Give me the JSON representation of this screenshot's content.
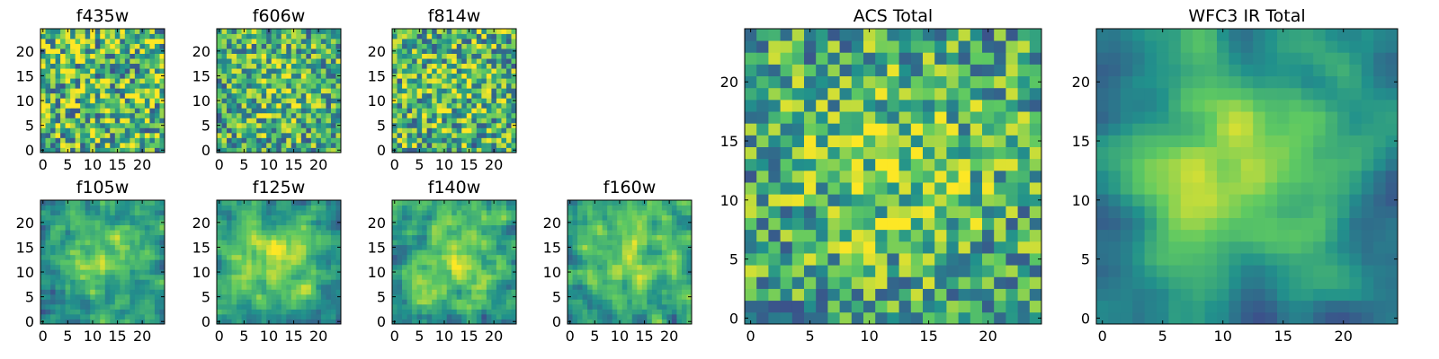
{
  "figure": {
    "colormap": [
      "#440154",
      "#3b528b",
      "#21918c",
      "#5ec962",
      "#fde725"
    ],
    "frame_color": "#000000"
  },
  "chart_data": [
    {
      "type": "heatmap",
      "title": "f435w",
      "grid_size": 25,
      "seed": 11,
      "smooth": 0,
      "center_boost": 0.0,
      "clim": [
        0,
        1
      ],
      "x_ticks": [
        0,
        5,
        10,
        15,
        20
      ],
      "y_ticks": [
        0,
        5,
        10,
        15,
        20
      ],
      "xlim": [
        -0.5,
        24.5
      ],
      "ylim": [
        -0.5,
        24.5
      ]
    },
    {
      "type": "heatmap",
      "title": "f606w",
      "grid_size": 25,
      "seed": 23,
      "smooth": 0,
      "center_boost": 0.15,
      "clim": [
        0,
        1
      ],
      "x_ticks": [
        0,
        5,
        10,
        15,
        20
      ],
      "y_ticks": [
        0,
        5,
        10,
        15,
        20
      ],
      "xlim": [
        -0.5,
        24.5
      ],
      "ylim": [
        -0.5,
        24.5
      ]
    },
    {
      "type": "heatmap",
      "title": "f814w",
      "grid_size": 25,
      "seed": 37,
      "smooth": 0,
      "center_boost": 0.1,
      "clim": [
        0,
        1
      ],
      "x_ticks": [
        0,
        5,
        10,
        15,
        20
      ],
      "y_ticks": [
        0,
        5,
        10,
        15,
        20
      ],
      "xlim": [
        -0.5,
        24.5
      ],
      "ylim": [
        -0.5,
        24.5
      ]
    },
    {
      "type": "heatmap",
      "title": "f105w",
      "grid_size": 25,
      "seed": 41,
      "smooth": 1,
      "center_boost": 0.35,
      "clim": [
        0,
        1
      ],
      "x_ticks": [
        0,
        5,
        10,
        15,
        20
      ],
      "y_ticks": [
        0,
        5,
        10,
        15,
        20
      ],
      "xlim": [
        -0.5,
        24.5
      ],
      "ylim": [
        -0.5,
        24.5
      ]
    },
    {
      "type": "heatmap",
      "title": "f125w",
      "grid_size": 25,
      "seed": 53,
      "smooth": 1,
      "center_boost": 0.35,
      "clim": [
        0,
        1
      ],
      "x_ticks": [
        0,
        5,
        10,
        15,
        20
      ],
      "y_ticks": [
        0,
        5,
        10,
        15,
        20
      ],
      "xlim": [
        -0.5,
        24.5
      ],
      "ylim": [
        -0.5,
        24.5
      ]
    },
    {
      "type": "heatmap",
      "title": "f140w",
      "grid_size": 25,
      "seed": 67,
      "smooth": 1,
      "center_boost": 0.3,
      "clim": [
        0,
        1
      ],
      "x_ticks": [
        0,
        5,
        10,
        15,
        20
      ],
      "y_ticks": [
        0,
        5,
        10,
        15,
        20
      ],
      "xlim": [
        -0.5,
        24.5
      ],
      "ylim": [
        -0.5,
        24.5
      ]
    },
    {
      "type": "heatmap",
      "title": "f160w",
      "grid_size": 25,
      "seed": 79,
      "smooth": 1,
      "center_boost": 0.3,
      "clim": [
        0,
        1
      ],
      "x_ticks": [
        0,
        5,
        10,
        15,
        20
      ],
      "y_ticks": [
        0,
        5,
        10,
        15,
        20
      ],
      "xlim": [
        -0.5,
        24.5
      ],
      "ylim": [
        -0.5,
        24.5
      ]
    },
    {
      "type": "heatmap",
      "title": "ACS Total",
      "grid_size": 25,
      "seed": 97,
      "smooth": 0,
      "center_boost": 0.2,
      "clim": [
        0,
        1
      ],
      "x_ticks": [
        0,
        5,
        10,
        15,
        20
      ],
      "y_ticks": [
        0,
        5,
        10,
        15,
        20
      ],
      "xlim": [
        -0.5,
        24.5
      ],
      "ylim": [
        -0.5,
        24.5
      ]
    },
    {
      "type": "heatmap",
      "title": "WFC3 IR Total",
      "grid_size": 25,
      "seed": 101,
      "smooth": 2,
      "center_boost": 0.5,
      "clim": [
        0,
        1
      ],
      "x_ticks": [
        0,
        5,
        10,
        15,
        20
      ],
      "y_ticks": [
        0,
        5,
        10,
        15,
        20
      ],
      "xlim": [
        -0.5,
        24.5
      ],
      "ylim": [
        -0.5,
        24.5
      ]
    }
  ]
}
